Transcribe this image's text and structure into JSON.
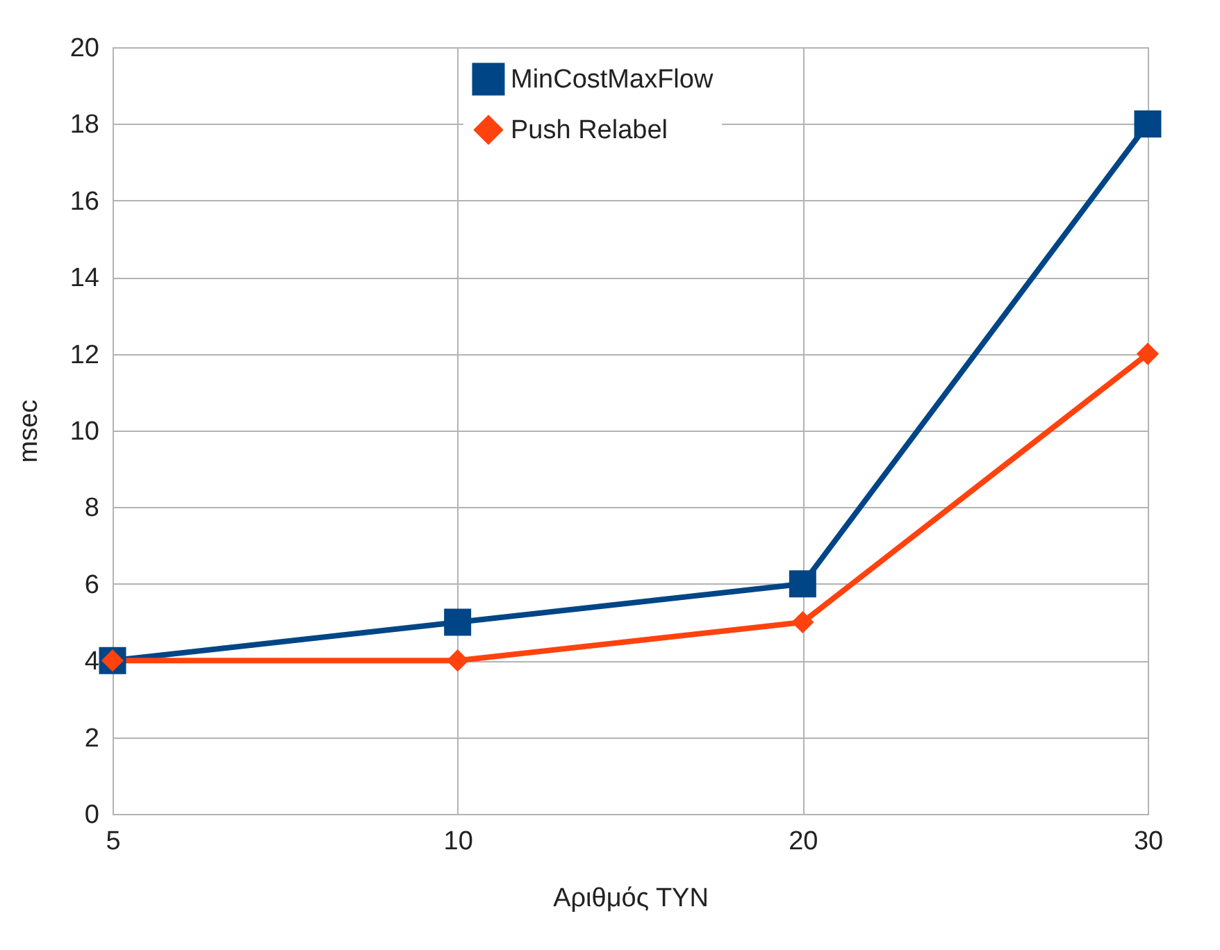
{
  "chart_data": {
    "type": "line",
    "xlabel": "Αριθμός ΤΥΝ",
    "ylabel": "msec",
    "categories": [
      "5",
      "10",
      "20",
      "30"
    ],
    "series": [
      {
        "name": "MinCostMaxFlow",
        "color": "#004586",
        "marker": "square",
        "values": [
          4,
          5,
          6,
          18
        ]
      },
      {
        "name": "Push Relabel",
        "color": "#ff420e",
        "marker": "diamond",
        "values": [
          4,
          4,
          5,
          12
        ]
      }
    ],
    "ylim": [
      0,
      20
    ],
    "yticks": [
      0,
      2,
      4,
      6,
      8,
      10,
      12,
      14,
      16,
      18,
      20
    ],
    "grid": true,
    "legend": "top"
  }
}
